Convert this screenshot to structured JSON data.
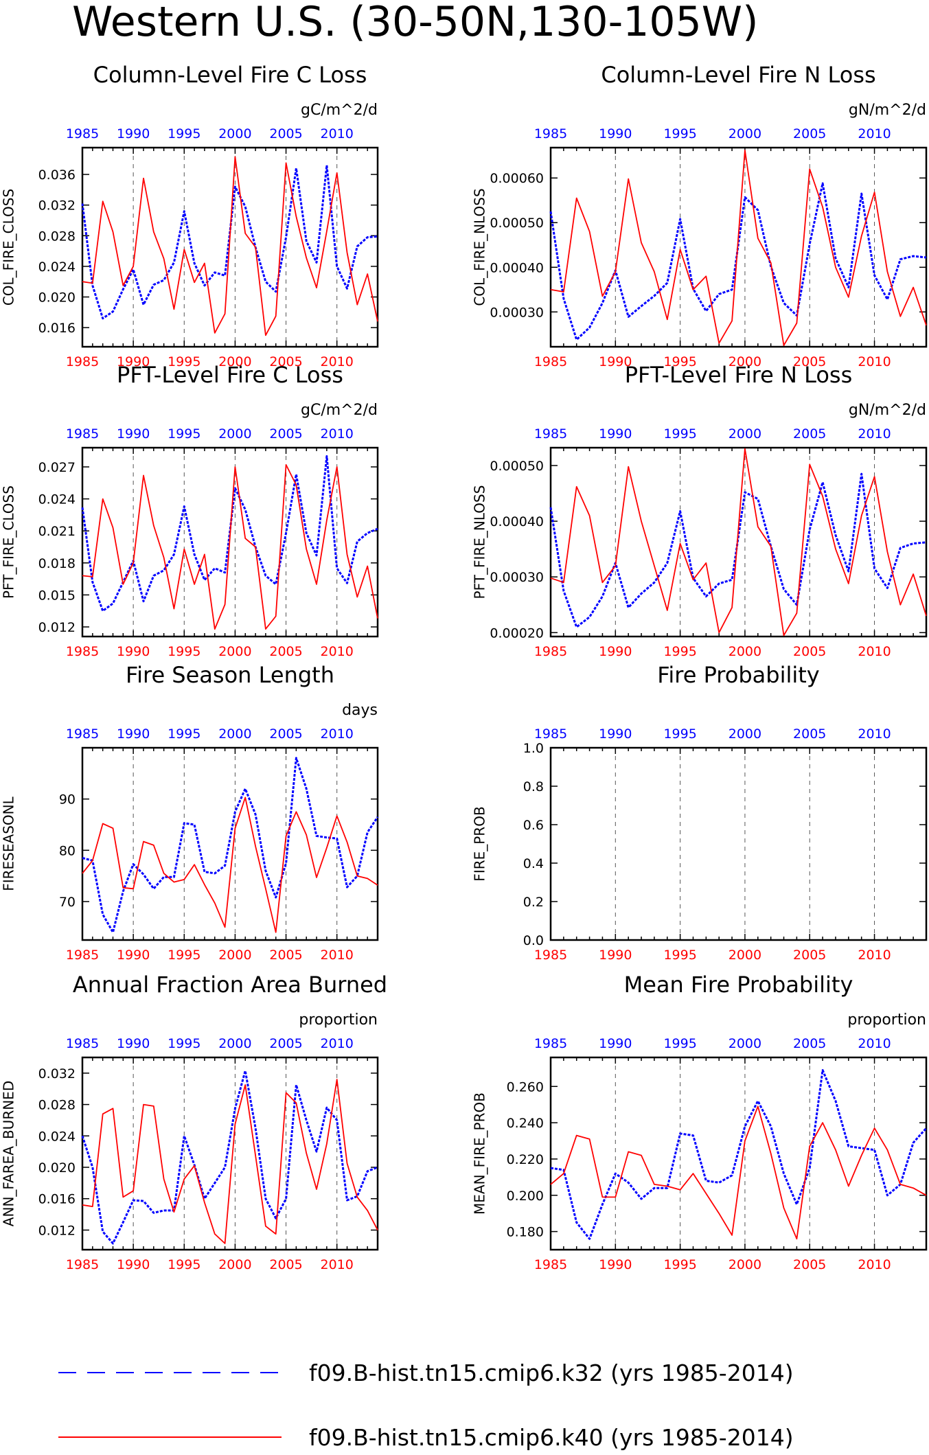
{
  "figure": {
    "title": "Western U.S. (30-50N,130-105W)"
  },
  "legend": [
    {
      "label": "f09.B-hist.tn15.cmip6.k32 (yrs 1985-2014)",
      "color": "#0000ff",
      "style": "dashed"
    },
    {
      "label": "f09.B-hist.tn15.cmip6.k40 (yrs 1985-2014)",
      "color": "#ff0000",
      "style": "solid"
    }
  ],
  "colors": {
    "k32": "#0000ff",
    "k40": "#ff0000",
    "axis": "#000000"
  },
  "chart_data": [
    {
      "type": "line",
      "title": "Column-Level Fire C Loss",
      "ylabel": "COL_FIRE_CLOSS",
      "units": "gC/m^2/d",
      "ylim": [
        0.0135,
        0.0395
      ],
      "yticks": [
        0.016,
        0.02,
        0.024,
        0.028,
        0.032,
        0.036
      ],
      "ytick_labels": [
        "0.016",
        "0.020",
        "0.024",
        "0.028",
        "0.032",
        "0.036"
      ],
      "x": [
        1985,
        1986,
        1987,
        1988,
        1989,
        1990,
        1991,
        1992,
        1993,
        1994,
        1995,
        1996,
        1997,
        1998,
        1999,
        2000,
        2001,
        2002,
        2003,
        2004,
        2005,
        2006,
        2007,
        2008,
        2009,
        2010,
        2011,
        2012,
        2013,
        2014
      ],
      "series": [
        {
          "name": "f09.B-hist.tn15.cmip6.k32",
          "values": [
            0.0322,
            0.0215,
            0.0172,
            0.0181,
            0.021,
            0.0236,
            0.019,
            0.0216,
            0.0222,
            0.0245,
            0.0312,
            0.0244,
            0.0215,
            0.0232,
            0.0228,
            0.0344,
            0.0318,
            0.0265,
            0.022,
            0.0207,
            0.0278,
            0.0368,
            0.0273,
            0.0245,
            0.0372,
            0.024,
            0.0211,
            0.0266,
            0.0278,
            0.0279
          ]
        },
        {
          "name": "f09.B-hist.tn15.cmip6.k40",
          "values": [
            0.022,
            0.0218,
            0.0325,
            0.0285,
            0.0215,
            0.024,
            0.0355,
            0.0285,
            0.025,
            0.0184,
            0.0262,
            0.0219,
            0.0244,
            0.0153,
            0.0178,
            0.0383,
            0.0283,
            0.0265,
            0.015,
            0.0175,
            0.0375,
            0.0305,
            0.0251,
            0.0212,
            0.0286,
            0.0362,
            0.0258,
            0.019,
            0.023,
            0.0168
          ]
        }
      ]
    },
    {
      "type": "line",
      "title": "Column-Level Fire N Loss",
      "ylabel": "COL_FIRE_NLOSS",
      "units": "gN/m^2/d",
      "ylim": [
        0.000222,
        0.000668
      ],
      "yticks": [
        0.0003,
        0.0004,
        0.0005,
        0.0006
      ],
      "ytick_labels": [
        "0.00030",
        "0.00040",
        "0.00050",
        "0.00060"
      ],
      "x": [
        1985,
        1986,
        1987,
        1988,
        1989,
        1990,
        1991,
        1992,
        1993,
        1994,
        1995,
        1996,
        1997,
        1998,
        1999,
        2000,
        2001,
        2002,
        2003,
        2004,
        2005,
        2006,
        2007,
        2008,
        2009,
        2010,
        2011,
        2012,
        2013,
        2014
      ],
      "series": [
        {
          "name": "f09.B-hist.tn15.cmip6.k32",
          "values": [
            0.000525,
            0.00033,
            0.000238,
            0.000265,
            0.00032,
            0.000393,
            0.000289,
            0.000313,
            0.000336,
            0.000365,
            0.000508,
            0.000352,
            0.000302,
            0.00034,
            0.00035,
            0.000557,
            0.000528,
            0.000402,
            0.00032,
            0.000292,
            0.000452,
            0.000588,
            0.00042,
            0.000355,
            0.000565,
            0.000382,
            0.000328,
            0.000418,
            0.000425,
            0.000422
          ]
        },
        {
          "name": "f09.B-hist.tn15.cmip6.k40",
          "values": [
            0.00035,
            0.000345,
            0.000555,
            0.00048,
            0.000335,
            0.00039,
            0.000598,
            0.000455,
            0.00039,
            0.000283,
            0.00044,
            0.00035,
            0.00038,
            0.00023,
            0.00028,
            0.000662,
            0.000465,
            0.00041,
            0.000225,
            0.000275,
            0.00062,
            0.000535,
            0.0004,
            0.000333,
            0.00047,
            0.000568,
            0.00039,
            0.00029,
            0.000355,
            0.00027
          ]
        }
      ]
    },
    {
      "type": "line",
      "title": "PFT-Level Fire C Loss",
      "ylabel": "PFT_FIRE_CLOSS",
      "units": "gC/m^2/d",
      "ylim": [
        0.0111,
        0.0288
      ],
      "yticks": [
        0.012,
        0.015,
        0.018,
        0.021,
        0.024,
        0.027
      ],
      "ytick_labels": [
        "0.012",
        "0.015",
        "0.018",
        "0.021",
        "0.024",
        "0.027"
      ],
      "x": [
        1985,
        1986,
        1987,
        1988,
        1989,
        1990,
        1991,
        1992,
        1993,
        1994,
        1995,
        1996,
        1997,
        1998,
        1999,
        2000,
        2001,
        2002,
        2003,
        2004,
        2005,
        2006,
        2007,
        2008,
        2009,
        2010,
        2011,
        2012,
        2013,
        2014
      ],
      "series": [
        {
          "name": "f09.B-hist.tn15.cmip6.k32",
          "values": [
            0.0232,
            0.0162,
            0.0135,
            0.0142,
            0.0162,
            0.0182,
            0.0144,
            0.0168,
            0.0173,
            0.0188,
            0.0233,
            0.0188,
            0.0164,
            0.0175,
            0.0171,
            0.025,
            0.023,
            0.0195,
            0.0168,
            0.016,
            0.0208,
            0.0263,
            0.0208,
            0.0187,
            0.028,
            0.0175,
            0.0161,
            0.02,
            0.0208,
            0.0212
          ]
        },
        {
          "name": "f09.B-hist.tn15.cmip6.k40",
          "values": [
            0.0168,
            0.0167,
            0.024,
            0.0213,
            0.016,
            0.018,
            0.0262,
            0.0215,
            0.0185,
            0.0137,
            0.0193,
            0.016,
            0.0188,
            0.0118,
            0.0141,
            0.027,
            0.0203,
            0.0195,
            0.0118,
            0.013,
            0.0272,
            0.0253,
            0.0193,
            0.016,
            0.022,
            0.027,
            0.0188,
            0.0148,
            0.0177,
            0.0128
          ]
        }
      ]
    },
    {
      "type": "line",
      "title": "PFT-Level Fire N Loss",
      "ylabel": "PFT_FIRE_NLOSS",
      "units": "gN/m^2/d",
      "ylim": [
        0.000193,
        0.000532
      ],
      "yticks": [
        0.0002,
        0.0003,
        0.0004,
        0.0005
      ],
      "ytick_labels": [
        "0.00020",
        "0.00030",
        "0.00040",
        "0.00050"
      ],
      "x": [
        1985,
        1986,
        1987,
        1988,
        1989,
        1990,
        1991,
        1992,
        1993,
        1994,
        1995,
        1996,
        1997,
        1998,
        1999,
        2000,
        2001,
        2002,
        2003,
        2004,
        2005,
        2006,
        2007,
        2008,
        2009,
        2010,
        2011,
        2012,
        2013,
        2014
      ],
      "series": [
        {
          "name": "f09.B-hist.tn15.cmip6.k32",
          "values": [
            0.000425,
            0.000275,
            0.00021,
            0.000228,
            0.000265,
            0.000325,
            0.000245,
            0.00027,
            0.00029,
            0.000325,
            0.000418,
            0.000298,
            0.000265,
            0.000288,
            0.000295,
            0.000452,
            0.00044,
            0.000355,
            0.000278,
            0.00025,
            0.000385,
            0.00047,
            0.000375,
            0.00031,
            0.000485,
            0.000315,
            0.00028,
            0.000352,
            0.00036,
            0.000362
          ]
        },
        {
          "name": "f09.B-hist.tn15.cmip6.k40",
          "values": [
            0.000298,
            0.00029,
            0.000462,
            0.00041,
            0.00029,
            0.00032,
            0.000498,
            0.0004,
            0.00032,
            0.00024,
            0.00036,
            0.000295,
            0.000325,
            0.0002,
            0.000245,
            0.00053,
            0.00039,
            0.000355,
            0.000195,
            0.000235,
            0.000502,
            0.000445,
            0.00035,
            0.000288,
            0.00041,
            0.00048,
            0.000345,
            0.00025,
            0.000305,
            0.00023
          ]
        }
      ]
    },
    {
      "type": "line",
      "title": "Fire Season Length",
      "ylabel": "FIRESEASONL",
      "units": "days",
      "ylim": [
        62.5,
        100
      ],
      "yticks": [
        70,
        80,
        90
      ],
      "ytick_labels": [
        "70",
        "80",
        "90"
      ],
      "x": [
        1985,
        1986,
        1987,
        1988,
        1989,
        1990,
        1991,
        1992,
        1993,
        1994,
        1995,
        1996,
        1997,
        1998,
        1999,
        2000,
        2001,
        2002,
        2003,
        2004,
        2005,
        2006,
        2007,
        2008,
        2009,
        2010,
        2011,
        2012,
        2013,
        2014
      ],
      "series": [
        {
          "name": "f09.B-hist.tn15.cmip6.k32",
          "values": [
            78.5,
            78.0,
            67.5,
            64.0,
            72.0,
            77.3,
            75.3,
            72.5,
            74.8,
            74.8,
            85.3,
            85.0,
            75.8,
            75.5,
            77.0,
            87.5,
            92.0,
            87.0,
            76.0,
            70.8,
            77.5,
            98.0,
            92.0,
            82.8,
            82.5,
            82.3,
            72.8,
            75.0,
            83.5,
            86.5
          ]
        },
        {
          "name": "f09.B-hist.tn15.cmip6.k40",
          "values": [
            75.5,
            78.0,
            85.2,
            84.3,
            72.7,
            72.5,
            81.7,
            81.0,
            75.5,
            73.8,
            74.3,
            77.2,
            73.3,
            69.7,
            65.0,
            84.3,
            90.3,
            80.8,
            72.5,
            64.0,
            82.8,
            87.5,
            83.0,
            74.7,
            80.5,
            86.7,
            81.6,
            75.0,
            74.5,
            73.2
          ]
        }
      ]
    },
    {
      "type": "line",
      "title": "Fire Probability",
      "ylabel": "FIRE_PROB",
      "units": "",
      "ylim": [
        0.0,
        1.0
      ],
      "yticks": [
        0.0,
        0.2,
        0.4,
        0.6,
        0.8,
        1.0
      ],
      "ytick_labels": [
        "0.0",
        "0.2",
        "0.4",
        "0.6",
        "0.8",
        "1.0"
      ],
      "x": [],
      "series": []
    },
    {
      "type": "line",
      "title": "Annual Fraction Area Burned",
      "ylabel": "ANN_FAREA_BURNED",
      "units": "proportion",
      "ylim": [
        0.0095,
        0.034
      ],
      "yticks": [
        0.012,
        0.016,
        0.02,
        0.024,
        0.028,
        0.032
      ],
      "ytick_labels": [
        "0.012",
        "0.016",
        "0.020",
        "0.024",
        "0.028",
        "0.032"
      ],
      "x": [
        1985,
        1986,
        1987,
        1988,
        1989,
        1990,
        1991,
        1992,
        1993,
        1994,
        1995,
        1996,
        1997,
        1998,
        1999,
        2000,
        2001,
        2002,
        2003,
        2004,
        2005,
        2006,
        2007,
        2008,
        2009,
        2010,
        2011,
        2012,
        2013,
        2014
      ],
      "series": [
        {
          "name": "f09.B-hist.tn15.cmip6.k32",
          "values": [
            0.024,
            0.02,
            0.0118,
            0.0103,
            0.013,
            0.0158,
            0.0157,
            0.0142,
            0.0145,
            0.0145,
            0.024,
            0.0203,
            0.016,
            0.018,
            0.02,
            0.0275,
            0.0323,
            0.025,
            0.016,
            0.0135,
            0.016,
            0.0305,
            0.026,
            0.022,
            0.0276,
            0.026,
            0.0158,
            0.0163,
            0.0195,
            0.02
          ]
        },
        {
          "name": "f09.B-hist.tn15.cmip6.k40",
          "values": [
            0.0152,
            0.015,
            0.0268,
            0.0275,
            0.0162,
            0.017,
            0.028,
            0.0278,
            0.0185,
            0.0143,
            0.0185,
            0.0202,
            0.0155,
            0.0115,
            0.0103,
            0.0255,
            0.0305,
            0.0215,
            0.0125,
            0.0115,
            0.0295,
            0.0282,
            0.0218,
            0.0172,
            0.023,
            0.0312,
            0.0205,
            0.0162,
            0.0145,
            0.012
          ]
        }
      ]
    },
    {
      "type": "line",
      "title": "Mean Fire Probability",
      "ylabel": "MEAN_FIRE_PROB",
      "units": "proportion",
      "ylim": [
        0.17,
        0.276
      ],
      "yticks": [
        0.18,
        0.2,
        0.22,
        0.24,
        0.26
      ],
      "ytick_labels": [
        "0.180",
        "0.200",
        "0.220",
        "0.240",
        "0.260"
      ],
      "x": [
        1985,
        1986,
        1987,
        1988,
        1989,
        1990,
        1991,
        1992,
        1993,
        1994,
        1995,
        1996,
        1997,
        1998,
        1999,
        2000,
        2001,
        2002,
        2003,
        2004,
        2005,
        2006,
        2007,
        2008,
        2009,
        2010,
        2011,
        2012,
        2013,
        2014
      ],
      "series": [
        {
          "name": "f09.B-hist.tn15.cmip6.k32",
          "values": [
            0.215,
            0.214,
            0.185,
            0.176,
            0.195,
            0.212,
            0.207,
            0.198,
            0.204,
            0.204,
            0.234,
            0.233,
            0.208,
            0.207,
            0.211,
            0.238,
            0.252,
            0.238,
            0.212,
            0.195,
            0.215,
            0.269,
            0.252,
            0.227,
            0.226,
            0.225,
            0.2,
            0.206,
            0.229,
            0.237
          ]
        },
        {
          "name": "f09.B-hist.tn15.cmip6.k40",
          "values": [
            0.206,
            0.212,
            0.233,
            0.231,
            0.199,
            0.199,
            0.224,
            0.222,
            0.206,
            0.205,
            0.203,
            0.212,
            0.201,
            0.19,
            0.178,
            0.23,
            0.249,
            0.223,
            0.193,
            0.176,
            0.227,
            0.24,
            0.225,
            0.205,
            0.222,
            0.237,
            0.225,
            0.206,
            0.204,
            0.2
          ]
        }
      ]
    }
  ],
  "x_axis": {
    "xlim": [
      1985,
      2014
    ],
    "ticks": [
      1985,
      1990,
      1995,
      2000,
      2005,
      2010
    ],
    "tick_labels": [
      "1985",
      "1990",
      "1995",
      "2000",
      "2005",
      "2010"
    ],
    "vlines": [
      1990,
      1995,
      2000,
      2005,
      2010
    ]
  }
}
